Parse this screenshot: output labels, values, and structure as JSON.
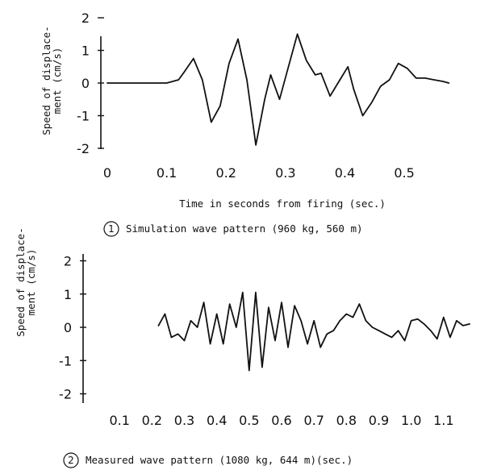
{
  "chart_data": [
    {
      "type": "line",
      "ylabel": "Speed of displace-\nment (cm/s)",
      "xlabel": "Time in seconds from firing (sec.)",
      "caption_number": "1",
      "caption": "Simulation wave pattern (960 kg, 560 m)",
      "xlim": [
        0,
        0.58
      ],
      "ylim": [
        -2.1,
        2.1
      ],
      "xticks": [
        "0",
        "0.1",
        "0.2",
        "0.3",
        "0.4",
        "0.5"
      ],
      "xtick_values": [
        0,
        0.1,
        0.2,
        0.3,
        0.4,
        0.5
      ],
      "yticks": [
        "2",
        "1",
        "0",
        "-1",
        "-2"
      ],
      "ytick_values": [
        2,
        1,
        0,
        -1,
        -2
      ],
      "series": [
        {
          "x": [
            0,
            0.05,
            0.1,
            0.12,
            0.13,
            0.145,
            0.16,
            0.175,
            0.19,
            0.205,
            0.22,
            0.235,
            0.25,
            0.265,
            0.275,
            0.29,
            0.305,
            0.32,
            0.335,
            0.35,
            0.36,
            0.375,
            0.39,
            0.405,
            0.415,
            0.43,
            0.445,
            0.46,
            0.475,
            0.49,
            0.505,
            0.52,
            0.535,
            0.55,
            0.565,
            0.575
          ],
          "y": [
            0,
            0,
            0,
            0.1,
            0.35,
            0.75,
            0.1,
            -1.2,
            -0.7,
            0.6,
            1.35,
            0.1,
            -1.9,
            -0.5,
            0.25,
            -0.5,
            0.5,
            1.5,
            0.7,
            0.25,
            0.3,
            -0.4,
            0.05,
            0.5,
            -0.2,
            -1.0,
            -0.6,
            -0.1,
            0.1,
            0.6,
            0.45,
            0.15,
            0.15,
            0.1,
            0.05,
            0.0
          ]
        }
      ]
    },
    {
      "type": "line",
      "ylabel": "Speed of displace-\nment (cm/s)",
      "caption_number": "2",
      "caption": "Measured wave pattern (1080 kg, 644 m)(sec.)",
      "xlim": [
        0.0,
        1.2
      ],
      "ylim": [
        -2.4,
        2.4
      ],
      "xticks": [
        "0.1",
        "0.2",
        "0.3",
        "0.4",
        "0.5",
        "0.6",
        "0.7",
        "0.8",
        "0.9",
        "1.0",
        "1.1"
      ],
      "xtick_values": [
        0.1,
        0.2,
        0.3,
        0.4,
        0.5,
        0.6,
        0.7,
        0.8,
        0.9,
        1.0,
        1.1
      ],
      "yticks": [
        "2",
        "1",
        "0",
        "-1",
        "-2"
      ],
      "ytick_values": [
        2,
        1,
        0,
        -1,
        -2
      ],
      "series": [
        {
          "x": [
            0.22,
            0.24,
            0.26,
            0.28,
            0.3,
            0.32,
            0.34,
            0.36,
            0.38,
            0.4,
            0.42,
            0.44,
            0.46,
            0.48,
            0.5,
            0.52,
            0.54,
            0.56,
            0.58,
            0.6,
            0.62,
            0.64,
            0.66,
            0.68,
            0.7,
            0.72,
            0.74,
            0.76,
            0.78,
            0.8,
            0.82,
            0.84,
            0.86,
            0.88,
            0.9,
            0.92,
            0.94,
            0.96,
            0.98,
            1.0,
            1.02,
            1.04,
            1.06,
            1.08,
            1.1,
            1.12,
            1.14,
            1.16,
            1.18
          ],
          "y": [
            0.05,
            0.4,
            -0.3,
            -0.2,
            -0.4,
            0.2,
            0.0,
            0.75,
            -0.5,
            0.4,
            -0.5,
            0.7,
            0.0,
            1.05,
            -1.3,
            1.05,
            -1.2,
            0.6,
            -0.4,
            0.75,
            -0.6,
            0.65,
            0.2,
            -0.5,
            0.2,
            -0.6,
            -0.2,
            -0.1,
            0.2,
            0.4,
            0.3,
            0.7,
            0.2,
            0.0,
            -0.1,
            -0.2,
            -0.3,
            -0.1,
            -0.4,
            0.2,
            0.25,
            0.1,
            -0.1,
            -0.35,
            0.3,
            -0.3,
            0.2,
            0.05,
            0.1
          ]
        }
      ]
    }
  ]
}
